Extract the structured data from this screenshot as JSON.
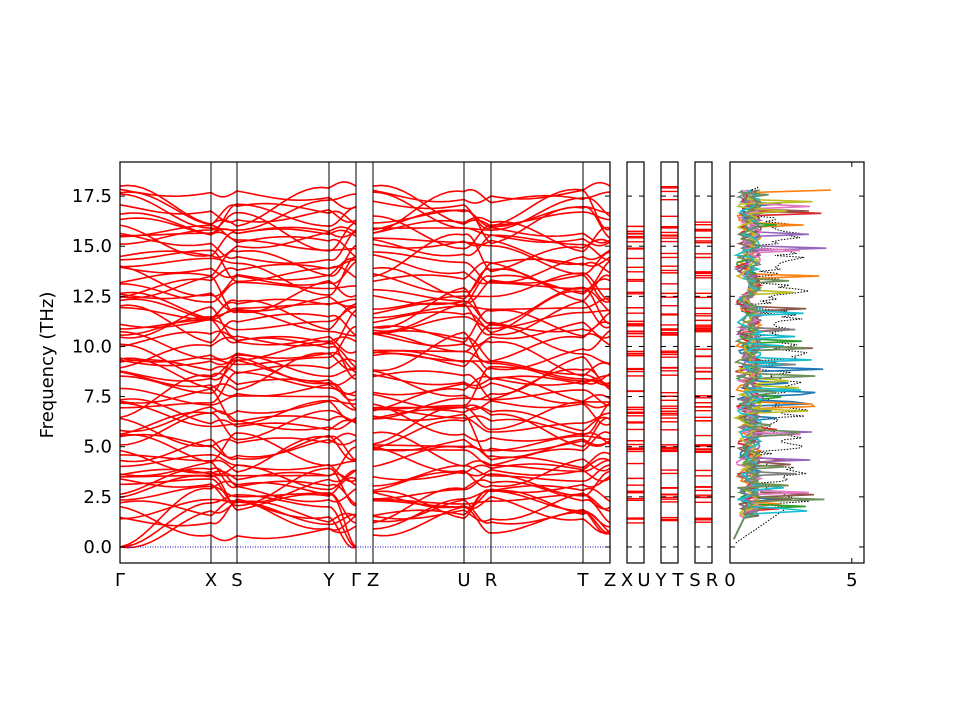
{
  "chart_data": {
    "type": "line",
    "ylabel": "Frequency (THz)",
    "ylim": [
      -0.8,
      19.2
    ],
    "yticks": [
      "0.0",
      "2.5",
      "5.0",
      "7.5",
      "10.0",
      "12.5",
      "15.0",
      "17.5"
    ],
    "grid": false,
    "band_color": "#ff0000",
    "zero_line_color": "#0000cc",
    "panels": [
      {
        "name": "main-path",
        "segments": [
          {
            "from": "Γ",
            "to": "X"
          },
          {
            "from": "X",
            "to": "S"
          },
          {
            "from": "S",
            "to": "Y"
          },
          {
            "from": "Y",
            "to": "Γ"
          },
          {
            "from": "Z",
            "to": "U"
          },
          {
            "from": "U",
            "to": "R"
          },
          {
            "from": "R",
            "to": "T"
          },
          {
            "from": "T",
            "to": "Z"
          }
        ],
        "xtick_labels": [
          "Γ",
          "X",
          "S",
          "Y",
          "Γ",
          "Z",
          "U",
          "R",
          "T",
          "Z"
        ]
      },
      {
        "name": "X-U",
        "xtick_labels": [
          "X",
          "U"
        ]
      },
      {
        "name": "Y-T",
        "xtick_labels": [
          "Y",
          "T"
        ]
      },
      {
        "name": "S-R",
        "xtick_labels": [
          "S",
          "R"
        ]
      }
    ],
    "dos": {
      "xlim": [
        0,
        5.5
      ],
      "xtick_labels": [
        "0",
        "5"
      ],
      "xticks": [
        0,
        5
      ],
      "series_colors": [
        "#1f77b4",
        "#ff7f0e",
        "#2ca02c",
        "#d62728",
        "#9467bd",
        "#8c564b",
        "#e377c2",
        "#7f7f7f",
        "#bcbd22",
        "#17becf",
        "#6b8e5a"
      ],
      "total_color": "#000000"
    }
  }
}
